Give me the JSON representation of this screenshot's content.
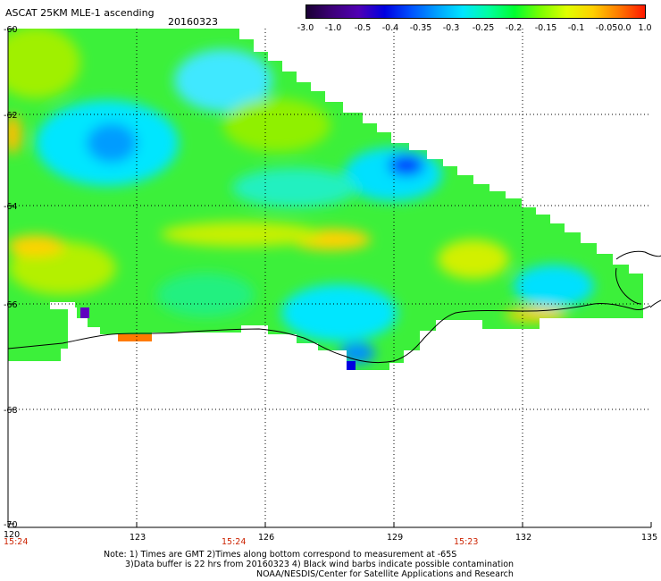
{
  "header": {
    "title": "ASCAT 25KM MLE-1 ascending",
    "date": "20160323"
  },
  "colorbar": {
    "labels": [
      "-3.0",
      "-1.0",
      "-0.5",
      "-0.4",
      "-0.35",
      "-0.3",
      "-0.25",
      "-0.2",
      "-0.15",
      "-0.1",
      "-0.05",
      "0.0",
      "1.0"
    ],
    "colors": [
      "#1a0033",
      "#3d007a",
      "#5000b4",
      "#0000e0",
      "#0050ff",
      "#00a0ff",
      "#00e6ff",
      "#00ffa0",
      "#00ff30",
      "#7cff00",
      "#e0ff00",
      "#ffd000",
      "#ff7a00",
      "#ff1800"
    ]
  },
  "axes": {
    "lon_ticks": [
      "120",
      "123",
      "126",
      "129",
      "132",
      "135"
    ],
    "lat_ticks": [
      "-60",
      "-62",
      "-64",
      "-66",
      "-68",
      "-70"
    ]
  },
  "times": [
    "15:24",
    "15:24",
    "15:23"
  ],
  "notes": {
    "line1": "Note: 1) Times are GMT 2)Times along bottom correspond to measurement at -65S",
    "line2": "3)Data buffer is 22 hrs from 20160323 4) Black wind barbs indicate possible contamination",
    "line3": "NOAA/NESDIS/Center for Satellite Applications and Research"
  }
}
